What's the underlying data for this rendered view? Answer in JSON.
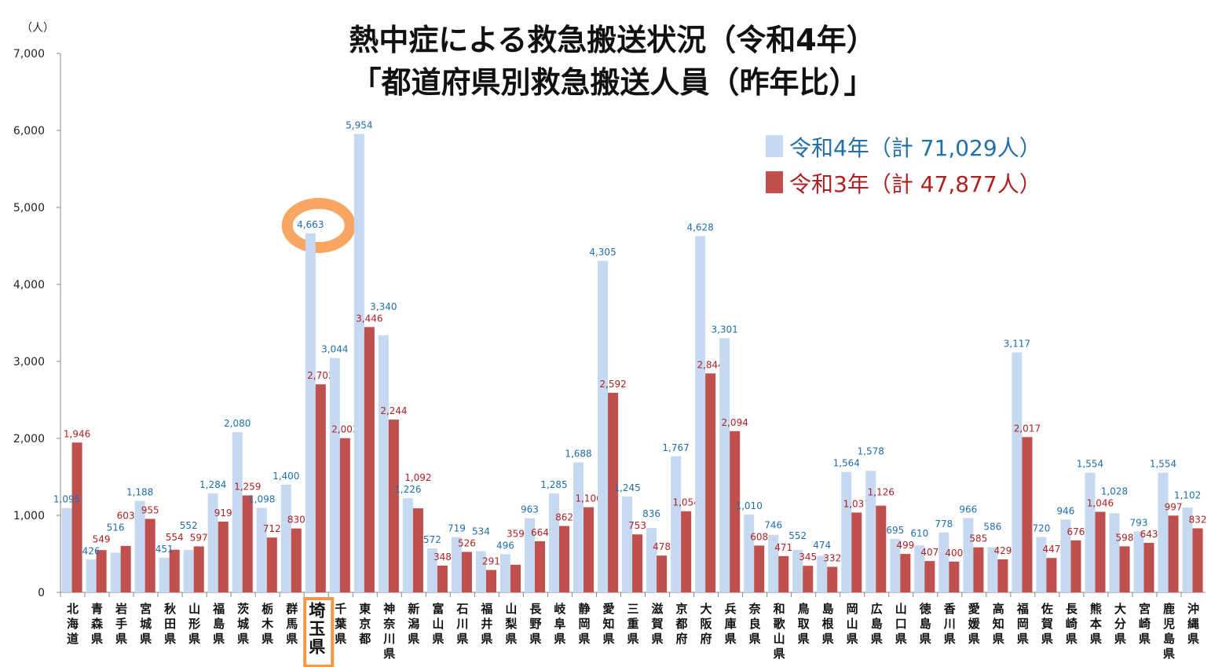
{
  "chart_data": {
    "type": "bar",
    "title": [
      "熱中症による救急搬送状況（令和4年）",
      "「都道府県別救急搬送人員（昨年比）」"
    ],
    "ylabel": "（人）",
    "ylim": [
      0,
      7000
    ],
    "yticks": [
      "0",
      "1,000",
      "2,000",
      "3,000",
      "4,000",
      "5,000",
      "6,000",
      "7,000"
    ],
    "grid": false,
    "legend_position": "top-right",
    "highlight": "埼玉県",
    "colors": {
      "r4": "#c5d9f1",
      "r3": "#c0504d",
      "highlight": "#f79646"
    },
    "categories": [
      "北海道",
      "青森県",
      "岩手県",
      "宮城県",
      "秋田県",
      "山形県",
      "福島県",
      "茨城県",
      "栃木県",
      "群馬県",
      "埼玉県",
      "千葉県",
      "東京都",
      "神奈川県",
      "新潟県",
      "富山県",
      "石川県",
      "福井県",
      "山梨県",
      "長野県",
      "岐阜県",
      "静岡県",
      "愛知県",
      "三重県",
      "滋賀県",
      "京都府",
      "大阪府",
      "兵庫県",
      "奈良県",
      "和歌山県",
      "鳥取県",
      "島根県",
      "岡山県",
      "広島県",
      "山口県",
      "徳島県",
      "香川県",
      "愛媛県",
      "高知県",
      "福岡県",
      "佐賀県",
      "長崎県",
      "熊本県",
      "大分県",
      "宮崎県",
      "鹿児島県",
      "沖縄県"
    ],
    "series": [
      {
        "name": "令和4年（計 71,029人）",
        "values": [
          1095,
          426,
          516,
          1188,
          451,
          552,
          1284,
          2080,
          1098,
          1400,
          4663,
          3044,
          5954,
          3340,
          1226,
          572,
          719,
          534,
          496,
          963,
          1285,
          1688,
          4305,
          1245,
          836,
          1767,
          4628,
          3301,
          1010,
          746,
          552,
          474,
          1564,
          1578,
          695,
          610,
          778,
          966,
          586,
          3117,
          720,
          946,
          1554,
          1028,
          793,
          1554,
          1102
        ]
      },
      {
        "name": "令和3年（計 47,877人）",
        "values": [
          1946,
          549,
          603,
          955,
          554,
          597,
          919,
          1259,
          712,
          830,
          2702,
          2003,
          3446,
          2244,
          1092,
          348,
          526,
          291,
          359,
          664,
          862,
          1106,
          2592,
          753,
          478,
          1054,
          2844,
          2094,
          608,
          471,
          345,
          332,
          1037,
          1126,
          499,
          407,
          400,
          585,
          429,
          2017,
          447,
          676,
          1046,
          598,
          643,
          997,
          832
        ]
      }
    ]
  }
}
